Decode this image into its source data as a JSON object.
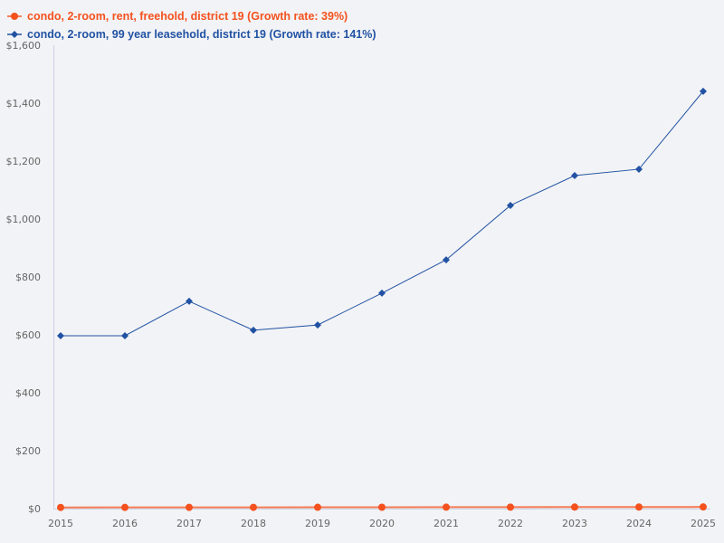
{
  "chart_data": {
    "type": "line",
    "title": "",
    "xlabel": "",
    "ylabel": "",
    "x": [
      "2015",
      "2016",
      "2017",
      "2018",
      "2019",
      "2020",
      "2021",
      "2022",
      "2023",
      "2024",
      "2025"
    ],
    "ylim": [
      0,
      1600
    ],
    "yticks": [
      "$0",
      "$200",
      "$400",
      "$600",
      "$800",
      "$1,000",
      "$1,200",
      "$1,400",
      "$1,600"
    ],
    "ytick_values": [
      0,
      200,
      400,
      600,
      800,
      1000,
      1200,
      1400,
      1600
    ],
    "grid": false,
    "legend_position": "top-left",
    "series": [
      {
        "name": "condo, 2-room, rent, freehold, district 19 (Growth rate: 39%)",
        "color": "#f4511e",
        "marker": "circle",
        "values": [
          4.1,
          4.2,
          4.3,
          4.4,
          4.5,
          4.7,
          4.9,
          5.1,
          5.3,
          5.5,
          5.7
        ]
      },
      {
        "name": "condo, 2-room, 99 year leasehold, district 19 (Growth rate: 141%)",
        "color": "#2152a3",
        "marker": "diamond",
        "values": [
          597,
          597,
          716,
          616,
          634,
          744,
          859,
          1047,
          1150,
          1172,
          1441
        ]
      }
    ]
  },
  "legend": {
    "items": [
      {
        "label": "condo, 2-room, rent, freehold, district 19 (Growth rate: 39%)",
        "color": "#f4511e"
      },
      {
        "label": "condo, 2-room, 99 year leasehold, district 19 (Growth rate: 141%)",
        "color": "#2152a3"
      }
    ]
  }
}
